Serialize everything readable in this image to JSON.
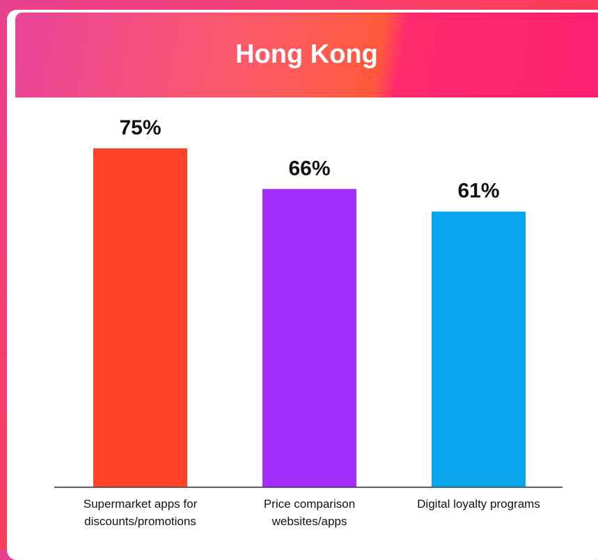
{
  "chart_data": {
    "type": "bar",
    "title": "Hong Kong",
    "categories": [
      "Supermarket apps for discounts/promotions",
      "Price comparison websites/apps",
      "Digital loyalty programs"
    ],
    "values": [
      75,
      66,
      61
    ],
    "value_labels": [
      "75%",
      "66%",
      "61%"
    ],
    "colors": [
      "#ff4228",
      "#a22efd",
      "#0aa5ec"
    ]
  }
}
